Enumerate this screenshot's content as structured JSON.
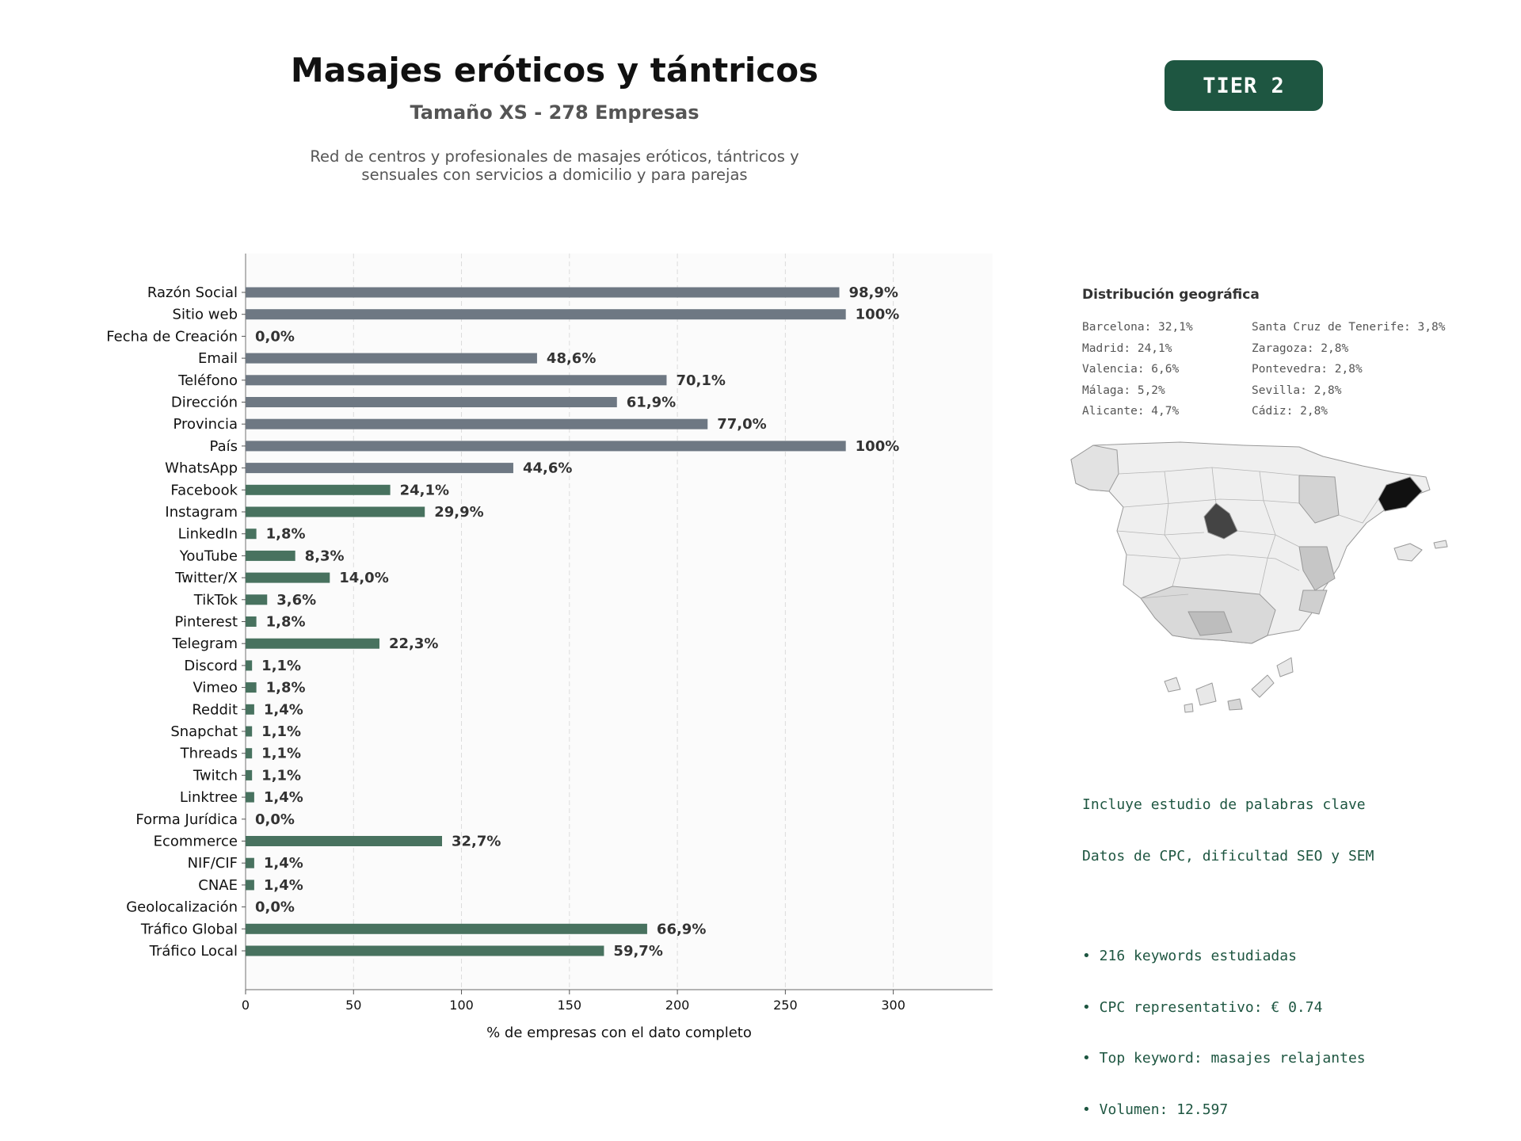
{
  "header": {
    "title": "Masajes eróticos y tántricos",
    "subtitle": "Tamaño XS - 278 Empresas",
    "description_line1": "Red de centros y profesionales de masajes eróticos, tántricos y",
    "description_line2": "sensuales con servicios a domicilio y para parejas",
    "tier_badge": "TIER 2"
  },
  "colors": {
    "gray_bar": "#6e7883",
    "green_bar": "#48725f",
    "accent": "#1e5641"
  },
  "chart_data": {
    "type": "bar",
    "orientation": "horizontal",
    "xlabel": "% de empresas con el dato completo",
    "xlim": [
      0,
      346
    ],
    "xticks": [
      0,
      50,
      100,
      150,
      200,
      250,
      300
    ],
    "grid": "vertical dashed",
    "categories": [
      "Razón Social",
      "Sitio web",
      "Fecha de Creación",
      "Email",
      "Teléfono",
      "Dirección",
      "Provincia",
      "País",
      "WhatsApp",
      "Facebook",
      "Instagram",
      "LinkedIn",
      "YouTube",
      "Twitter/X",
      "TikTok",
      "Pinterest",
      "Telegram",
      "Discord",
      "Vimeo",
      "Reddit",
      "Snapchat",
      "Threads",
      "Twitch",
      "Linktree",
      "Forma Jurídica",
      "Ecommerce",
      "NIF/CIF",
      "CNAE",
      "Geolocalización",
      "Tráfico Global",
      "Tráfico Local"
    ],
    "values": [
      275,
      278,
      0,
      135,
      195,
      172,
      214,
      278,
      124,
      67,
      83,
      5,
      23,
      39,
      10,
      5,
      62,
      3,
      5,
      4,
      3,
      3,
      3,
      4,
      0,
      91,
      4,
      4,
      0,
      186,
      166
    ],
    "labels": [
      "98,9%",
      "100%",
      "0,0%",
      "48,6%",
      "70,1%",
      "61,9%",
      "77,0%",
      "100%",
      "44,6%",
      "24,1%",
      "29,9%",
      "1,8%",
      "8,3%",
      "14,0%",
      "3,6%",
      "1,8%",
      "22,3%",
      "1,1%",
      "1,8%",
      "1,4%",
      "1,1%",
      "1,1%",
      "1,1%",
      "1,4%",
      "0,0%",
      "32,7%",
      "1,4%",
      "1,4%",
      "0,0%",
      "66,9%",
      "59,7%"
    ],
    "bar_color_group": [
      "gray",
      "gray",
      "gray",
      "gray",
      "gray",
      "gray",
      "gray",
      "gray",
      "gray",
      "green",
      "green",
      "green",
      "green",
      "green",
      "green",
      "green",
      "green",
      "green",
      "green",
      "green",
      "green",
      "green",
      "green",
      "green",
      "green",
      "green",
      "green",
      "green",
      "green",
      "green",
      "green"
    ]
  },
  "geo": {
    "title": "Distribución geográfica",
    "col1": [
      "Barcelona: 32,1%",
      "Madrid: 24,1%",
      "Valencia: 6,6%",
      "Málaga: 5,2%",
      "Alicante: 4,7%"
    ],
    "col2": [
      "Santa Cruz de Tenerife: 3,8%",
      "Zaragoza: 2,8%",
      "Pontevedra: 2,8%",
      "Sevilla: 2,8%",
      "Cádiz: 2,8%"
    ]
  },
  "keywords": {
    "line1": "Incluye estudio de palabras clave",
    "line2": "Datos de CPC, dificultad SEO y SEM",
    "bullet1": "• 216 keywords estudiadas",
    "bullet2": "• CPC representativo: € 0.74",
    "bullet3": "• Top keyword: masajes relajantes",
    "bullet4": "• Volumen: 12.597"
  }
}
